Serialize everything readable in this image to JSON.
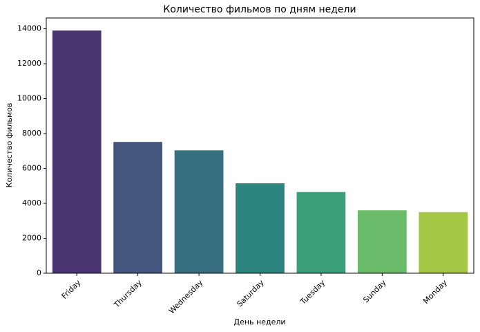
{
  "chart_data": {
    "type": "bar",
    "title": "Количество фильмов по дням недели",
    "x_label": "День недели",
    "y_label": "Количество фильмов",
    "categories": [
      "Friday",
      "Thursday",
      "Wednesday",
      "Saturday",
      "Tuesday",
      "Sunday",
      "Monday"
    ],
    "values": [
      13900,
      7520,
      7040,
      5150,
      4650,
      3600,
      3500
    ],
    "colors": [
      "#4a3472",
      "#44557e",
      "#376f80",
      "#2d847e",
      "#3a9e7a",
      "#6bbc6a",
      "#a3c744"
    ],
    "ylim": [
      0,
      14620
    ],
    "yticks": [
      0,
      2000,
      4000,
      6000,
      8000,
      10000,
      12000,
      14000
    ]
  }
}
